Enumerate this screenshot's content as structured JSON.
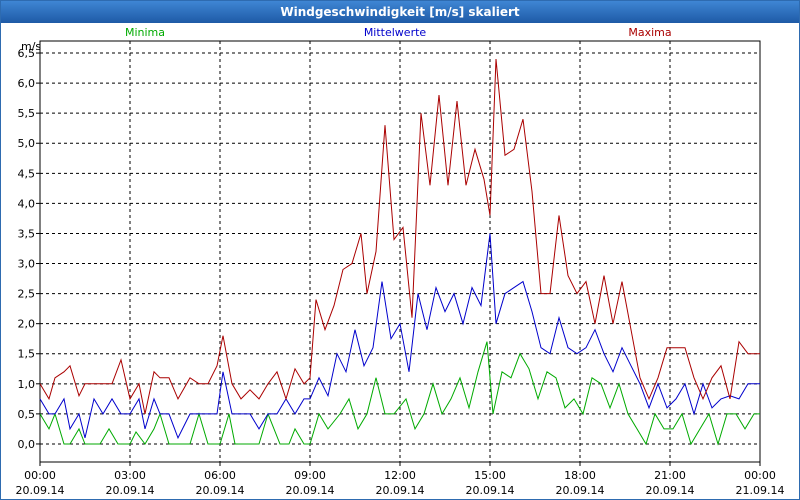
{
  "window": {
    "title": "Windgeschwindigkeit [m/s] skaliert"
  },
  "chart_data": {
    "type": "line",
    "title": "Windgeschwindigkeit [m/s] skaliert",
    "ylabel": "m/s",
    "xlabel": "",
    "ylim": [
      -0.3,
      6.7
    ],
    "xlim": [
      0,
      24
    ],
    "y_ticks": [
      {
        "value": 0.0,
        "label": "0,0"
      },
      {
        "value": 0.5,
        "label": "0,5"
      },
      {
        "value": 1.0,
        "label": "1,0"
      },
      {
        "value": 1.5,
        "label": "1,5"
      },
      {
        "value": 2.0,
        "label": "2,0"
      },
      {
        "value": 2.5,
        "label": "2,5"
      },
      {
        "value": 3.0,
        "label": "3,0"
      },
      {
        "value": 3.5,
        "label": "3,5"
      },
      {
        "value": 4.0,
        "label": "4,0"
      },
      {
        "value": 4.5,
        "label": "4,5"
      },
      {
        "value": 5.0,
        "label": "5,0"
      },
      {
        "value": 5.5,
        "label": "5,5"
      },
      {
        "value": 6.0,
        "label": "6,0"
      },
      {
        "value": 6.5,
        "label": "6,5"
      }
    ],
    "x_ticks": [
      {
        "value": 0,
        "time": "00:00",
        "date": "20.09.14"
      },
      {
        "value": 3,
        "time": "03:00",
        "date": "20.09.14"
      },
      {
        "value": 6,
        "time": "06:00",
        "date": "20.09.14"
      },
      {
        "value": 9,
        "time": "09:00",
        "date": "20.09.14"
      },
      {
        "value": 12,
        "time": "12:00",
        "date": "20.09.14"
      },
      {
        "value": 15,
        "time": "15:00",
        "date": "20.09.14"
      },
      {
        "value": 18,
        "time": "18:00",
        "date": "20.09.14"
      },
      {
        "value": 21,
        "time": "21:00",
        "date": "20.09.14"
      },
      {
        "value": 24,
        "time": "00:00",
        "date": "21.09.14"
      }
    ],
    "grid": true,
    "legend_position": "top",
    "series": [
      {
        "name": "Minima",
        "color": "#00aa00",
        "points": [
          [
            0,
            0.5
          ],
          [
            0.3,
            0.25
          ],
          [
            0.5,
            0.5
          ],
          [
            0.8,
            0
          ],
          [
            1,
            0
          ],
          [
            1.3,
            0.25
          ],
          [
            1.5,
            0
          ],
          [
            2,
            0
          ],
          [
            2.3,
            0.25
          ],
          [
            2.6,
            0
          ],
          [
            3,
            0
          ],
          [
            3.2,
            0.2
          ],
          [
            3.5,
            0
          ],
          [
            3.8,
            0.25
          ],
          [
            4,
            0.5
          ],
          [
            4.3,
            0
          ],
          [
            4.6,
            0
          ],
          [
            5,
            0
          ],
          [
            5.3,
            0.5
          ],
          [
            5.6,
            0
          ],
          [
            6,
            0
          ],
          [
            6.3,
            0.5
          ],
          [
            6.5,
            0
          ],
          [
            7,
            0
          ],
          [
            7.3,
            0
          ],
          [
            7.6,
            0.5
          ],
          [
            7.8,
            0.25
          ],
          [
            8,
            0
          ],
          [
            8.3,
            0
          ],
          [
            8.5,
            0.25
          ],
          [
            8.8,
            0
          ],
          [
            9,
            0
          ],
          [
            9.3,
            0.5
          ],
          [
            9.6,
            0.25
          ],
          [
            10,
            0.5
          ],
          [
            10.3,
            0.75
          ],
          [
            10.6,
            0.25
          ],
          [
            10.9,
            0.5
          ],
          [
            11.2,
            1.1
          ],
          [
            11.5,
            0.5
          ],
          [
            11.8,
            0.5
          ],
          [
            12.2,
            0.75
          ],
          [
            12.5,
            0.25
          ],
          [
            12.8,
            0.5
          ],
          [
            13.1,
            1
          ],
          [
            13.4,
            0.5
          ],
          [
            13.7,
            0.75
          ],
          [
            14,
            1.1
          ],
          [
            14.3,
            0.6
          ],
          [
            14.6,
            1.2
          ],
          [
            14.9,
            1.7
          ],
          [
            15.1,
            0.5
          ],
          [
            15.4,
            1.2
          ],
          [
            15.7,
            1.1
          ],
          [
            16,
            1.5
          ],
          [
            16.3,
            1.25
          ],
          [
            16.6,
            0.75
          ],
          [
            16.9,
            1.2
          ],
          [
            17.2,
            1.1
          ],
          [
            17.5,
            0.6
          ],
          [
            17.8,
            0.75
          ],
          [
            18.1,
            0.5
          ],
          [
            18.4,
            1.1
          ],
          [
            18.7,
            1
          ],
          [
            19,
            0.6
          ],
          [
            19.3,
            1
          ],
          [
            19.6,
            0.5
          ],
          [
            19.9,
            0.25
          ],
          [
            20.2,
            0
          ],
          [
            20.5,
            0.5
          ],
          [
            20.8,
            0.25
          ],
          [
            21.1,
            0.25
          ],
          [
            21.4,
            0.5
          ],
          [
            21.7,
            0
          ],
          [
            22,
            0.25
          ],
          [
            22.3,
            0.5
          ],
          [
            22.6,
            0
          ],
          [
            22.9,
            0.5
          ],
          [
            23.2,
            0.5
          ],
          [
            23.5,
            0.25
          ],
          [
            23.8,
            0.5
          ],
          [
            24,
            0.5
          ]
        ]
      },
      {
        "name": "Mittelwerte",
        "color": "#0000cc",
        "points": [
          [
            0,
            0.75
          ],
          [
            0.3,
            0.5
          ],
          [
            0.5,
            0.5
          ],
          [
            0.8,
            0.75
          ],
          [
            1,
            0.25
          ],
          [
            1.3,
            0.5
          ],
          [
            1.5,
            0.1
          ],
          [
            1.8,
            0.75
          ],
          [
            2.1,
            0.5
          ],
          [
            2.4,
            0.75
          ],
          [
            2.7,
            0.5
          ],
          [
            3,
            0.5
          ],
          [
            3.3,
            0.75
          ],
          [
            3.5,
            0.25
          ],
          [
            3.8,
            0.75
          ],
          [
            4,
            0.5
          ],
          [
            4.3,
            0.5
          ],
          [
            4.6,
            0.1
          ],
          [
            5,
            0.5
          ],
          [
            5.3,
            0.5
          ],
          [
            5.6,
            0.5
          ],
          [
            5.9,
            0.5
          ],
          [
            6.1,
            1.2
          ],
          [
            6.4,
            0.5
          ],
          [
            6.7,
            0.5
          ],
          [
            7,
            0.5
          ],
          [
            7.3,
            0.25
          ],
          [
            7.6,
            0.5
          ],
          [
            7.9,
            0.5
          ],
          [
            8.2,
            0.75
          ],
          [
            8.5,
            0.5
          ],
          [
            8.8,
            0.75
          ],
          [
            9,
            0.75
          ],
          [
            9.3,
            1.1
          ],
          [
            9.6,
            0.8
          ],
          [
            9.9,
            1.5
          ],
          [
            10.2,
            1.2
          ],
          [
            10.5,
            1.9
          ],
          [
            10.8,
            1.3
          ],
          [
            11.1,
            1.6
          ],
          [
            11.4,
            2.7
          ],
          [
            11.7,
            1.75
          ],
          [
            12,
            2
          ],
          [
            12.3,
            1.2
          ],
          [
            12.6,
            2.5
          ],
          [
            12.9,
            1.9
          ],
          [
            13.2,
            2.6
          ],
          [
            13.5,
            2.2
          ],
          [
            13.8,
            2.5
          ],
          [
            14.1,
            2
          ],
          [
            14.4,
            2.6
          ],
          [
            14.7,
            2.3
          ],
          [
            15,
            3.5
          ],
          [
            15.2,
            2
          ],
          [
            15.5,
            2.5
          ],
          [
            15.8,
            2.6
          ],
          [
            16.1,
            2.7
          ],
          [
            16.4,
            2.2
          ],
          [
            16.7,
            1.6
          ],
          [
            17,
            1.5
          ],
          [
            17.3,
            2.1
          ],
          [
            17.6,
            1.6
          ],
          [
            17.9,
            1.5
          ],
          [
            18.2,
            1.6
          ],
          [
            18.5,
            1.9
          ],
          [
            18.8,
            1.5
          ],
          [
            19.1,
            1.2
          ],
          [
            19.4,
            1.6
          ],
          [
            19.7,
            1.3
          ],
          [
            20,
            1
          ],
          [
            20.3,
            0.6
          ],
          [
            20.6,
            1
          ],
          [
            20.9,
            0.6
          ],
          [
            21.2,
            0.75
          ],
          [
            21.5,
            1
          ],
          [
            21.8,
            0.5
          ],
          [
            22.1,
            1
          ],
          [
            22.4,
            0.6
          ],
          [
            22.7,
            0.75
          ],
          [
            23,
            0.8
          ],
          [
            23.3,
            0.75
          ],
          [
            23.6,
            1
          ],
          [
            23.9,
            1
          ],
          [
            24,
            1
          ]
        ]
      },
      {
        "name": "Maxima",
        "color": "#aa0000",
        "points": [
          [
            0,
            1
          ],
          [
            0.3,
            0.75
          ],
          [
            0.5,
            1.1
          ],
          [
            0.8,
            1.2
          ],
          [
            1,
            1.3
          ],
          [
            1.3,
            0.8
          ],
          [
            1.5,
            1
          ],
          [
            1.8,
            1
          ],
          [
            2.1,
            1
          ],
          [
            2.4,
            1
          ],
          [
            2.7,
            1.4
          ],
          [
            3,
            0.75
          ],
          [
            3.3,
            1
          ],
          [
            3.5,
            0.5
          ],
          [
            3.8,
            1.2
          ],
          [
            4,
            1.1
          ],
          [
            4.3,
            1.1
          ],
          [
            4.6,
            0.75
          ],
          [
            5,
            1.1
          ],
          [
            5.3,
            1
          ],
          [
            5.6,
            1
          ],
          [
            5.9,
            1.3
          ],
          [
            6.1,
            1.8
          ],
          [
            6.4,
            1
          ],
          [
            6.7,
            0.75
          ],
          [
            7,
            0.9
          ],
          [
            7.3,
            0.75
          ],
          [
            7.6,
            1
          ],
          [
            7.9,
            1.2
          ],
          [
            8.2,
            0.75
          ],
          [
            8.5,
            1.25
          ],
          [
            8.8,
            1
          ],
          [
            9,
            1.1
          ],
          [
            9.2,
            2.4
          ],
          [
            9.5,
            1.9
          ],
          [
            9.8,
            2.3
          ],
          [
            10.1,
            2.9
          ],
          [
            10.4,
            3
          ],
          [
            10.7,
            3.5
          ],
          [
            10.9,
            2.5
          ],
          [
            11.2,
            3.2
          ],
          [
            11.5,
            5.3
          ],
          [
            11.8,
            3.4
          ],
          [
            12.1,
            3.6
          ],
          [
            12.4,
            2.1
          ],
          [
            12.7,
            5.5
          ],
          [
            13,
            4.3
          ],
          [
            13.3,
            5.8
          ],
          [
            13.6,
            4.3
          ],
          [
            13.9,
            5.7
          ],
          [
            14.2,
            4.3
          ],
          [
            14.5,
            4.9
          ],
          [
            14.8,
            4.4
          ],
          [
            15,
            3.8
          ],
          [
            15.2,
            6.4
          ],
          [
            15.5,
            4.8
          ],
          [
            15.8,
            4.9
          ],
          [
            16.1,
            5.4
          ],
          [
            16.4,
            4.2
          ],
          [
            16.7,
            2.5
          ],
          [
            17,
            2.5
          ],
          [
            17.3,
            3.8
          ],
          [
            17.6,
            2.8
          ],
          [
            17.9,
            2.5
          ],
          [
            18.2,
            2.7
          ],
          [
            18.5,
            2
          ],
          [
            18.8,
            2.8
          ],
          [
            19.1,
            2
          ],
          [
            19.4,
            2.7
          ],
          [
            19.7,
            1.9
          ],
          [
            20,
            1.1
          ],
          [
            20.3,
            0.75
          ],
          [
            20.6,
            1.1
          ],
          [
            20.9,
            1.6
          ],
          [
            21.2,
            1.6
          ],
          [
            21.5,
            1.6
          ],
          [
            21.8,
            1.1
          ],
          [
            22.1,
            0.75
          ],
          [
            22.4,
            1.1
          ],
          [
            22.7,
            1.3
          ],
          [
            23,
            0.75
          ],
          [
            23.3,
            1.7
          ],
          [
            23.6,
            1.5
          ],
          [
            23.9,
            1.5
          ],
          [
            24,
            1.5
          ]
        ]
      }
    ]
  }
}
